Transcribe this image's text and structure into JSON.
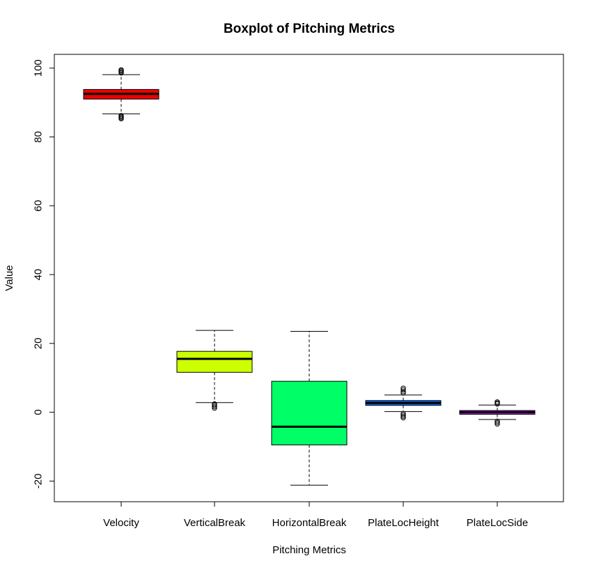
{
  "chart_data": {
    "type": "boxplot",
    "title": "Boxplot of Pitching Metrics",
    "xlabel": "Pitching Metrics",
    "ylabel": "Value",
    "ylim": [
      -26,
      104
    ],
    "yticks": [
      -20,
      0,
      20,
      40,
      60,
      80,
      100
    ],
    "categories": [
      "Velocity",
      "VerticalBreak",
      "HorizontalBreak",
      "PlateLocHeight",
      "PlateLocSide"
    ],
    "series": [
      {
        "name": "Velocity",
        "color": "#ee0000",
        "whisker_low": 86.7,
        "q1": 91.0,
        "median": 92.5,
        "q3": 93.8,
        "whisker_high": 98.1,
        "outliers": [
          85.3,
          85.6,
          85.9,
          86.2,
          98.6,
          98.9,
          99.2,
          99.5
        ]
      },
      {
        "name": "VerticalBreak",
        "color": "#ccff00",
        "whisker_low": 2.8,
        "q1": 11.6,
        "median": 15.5,
        "q3": 17.7,
        "whisker_high": 23.8,
        "outliers": [
          1.2,
          1.6,
          2.0,
          2.4
        ]
      },
      {
        "name": "HorizontalBreak",
        "color": "#00ff66",
        "whisker_low": -21.2,
        "q1": -9.5,
        "median": -4.2,
        "q3": 9.0,
        "whisker_high": 23.5,
        "outliers": []
      },
      {
        "name": "PlateLocHeight",
        "color": "#0066ff",
        "whisker_low": 0.2,
        "q1": 2.0,
        "median": 2.7,
        "q3": 3.4,
        "whisker_high": 5.0,
        "outliers": [
          -1.6,
          -1.2,
          -0.8,
          -0.4,
          5.6,
          6.0,
          6.5,
          7.0
        ]
      },
      {
        "name": "PlateLocSide",
        "color": "#cc00ff",
        "whisker_low": -2.1,
        "q1": -0.6,
        "median": 0.0,
        "q3": 0.5,
        "whisker_high": 2.1,
        "outliers": [
          -3.4,
          -3.0,
          -2.6,
          2.4,
          2.7,
          3.0
        ]
      }
    ]
  }
}
